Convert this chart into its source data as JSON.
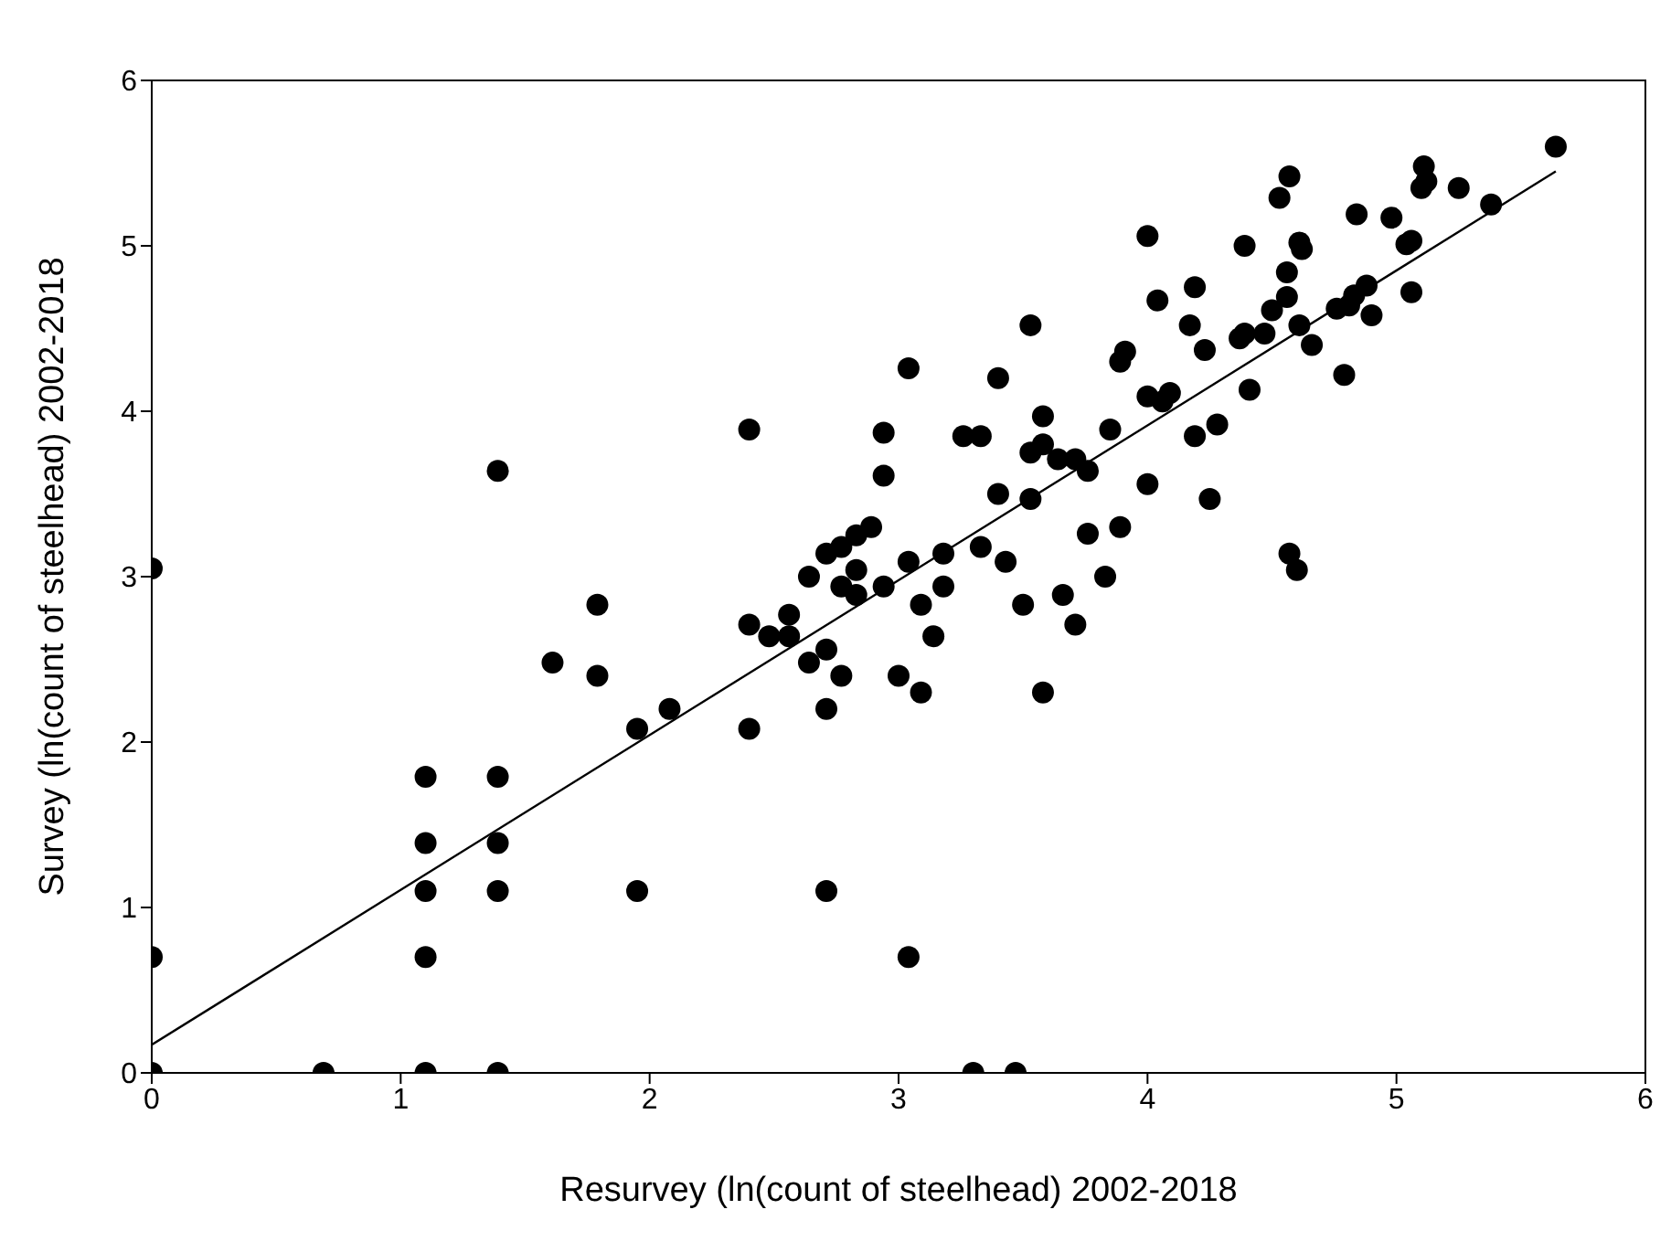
{
  "chart_data": {
    "type": "scatter",
    "xlabel": "Resurvey (ln(count of steelhead) 2002-2018",
    "ylabel": "Survey (ln(count of steelhead) 2002-2018",
    "xlim": [
      0,
      6
    ],
    "ylim": [
      0,
      6
    ],
    "xticks": [
      0,
      1,
      2,
      3,
      4,
      5,
      6
    ],
    "yticks": [
      0,
      1,
      2,
      3,
      4,
      5,
      6
    ],
    "grid": false,
    "legend": false,
    "marker": "circle",
    "series": [
      {
        "type": "scatter",
        "color": "#000000",
        "x": [
          0,
          0,
          0,
          0.69,
          1.1,
          1.1,
          1.1,
          1.1,
          1.1,
          1.39,
          1.39,
          1.39,
          1.39,
          1.39,
          1.61,
          1.79,
          1.79,
          1.95,
          1.95,
          2.08,
          2.4,
          2.4,
          2.4,
          2.48,
          2.56,
          2.56,
          2.64,
          2.64,
          2.71,
          2.71,
          2.71,
          2.71,
          2.77,
          2.77,
          2.77,
          2.83,
          2.83,
          2.83,
          2.89,
          2.94,
          2.94,
          2.94,
          3.0,
          3.04,
          3.04,
          3.04,
          3.09,
          3.09,
          3.14,
          3.18,
          3.18,
          3.26,
          3.3,
          3.33,
          3.33,
          3.4,
          3.4,
          3.43,
          3.47,
          3.5,
          3.53,
          3.53,
          3.53,
          3.58,
          3.58,
          3.58,
          3.64,
          3.66,
          3.71,
          3.71,
          3.76,
          3.76,
          3.83,
          3.85,
          3.89,
          3.89,
          3.91,
          4.0,
          4.0,
          4.0,
          4.04,
          4.06,
          4.09,
          4.17,
          4.19,
          4.19,
          4.23,
          4.25,
          4.28,
          4.37,
          4.39,
          4.39,
          4.41,
          4.47,
          4.5,
          4.53,
          4.56,
          4.56,
          4.57,
          4.57,
          4.6,
          4.61,
          4.61,
          4.62,
          4.66,
          4.76,
          4.79,
          4.81,
          4.83,
          4.84,
          4.88,
          4.9,
          4.98,
          5.04,
          5.06,
          5.06,
          5.1,
          5.11,
          5.12,
          5.25,
          5.38,
          5.64
        ],
        "values": [
          0,
          0.7,
          3.05,
          0,
          0,
          0.7,
          1.1,
          1.39,
          1.79,
          0,
          1.1,
          1.39,
          1.79,
          3.64,
          2.48,
          2.83,
          2.4,
          1.1,
          2.08,
          2.2,
          3.89,
          2.71,
          2.08,
          2.64,
          2.64,
          2.77,
          2.48,
          3.0,
          3.14,
          2.56,
          2.2,
          1.1,
          2.94,
          3.18,
          2.4,
          3.04,
          2.89,
          3.25,
          3.3,
          3.61,
          3.87,
          2.94,
          2.4,
          3.09,
          4.26,
          0.7,
          2.3,
          2.83,
          2.64,
          3.14,
          2.94,
          3.85,
          0,
          3.85,
          3.18,
          4.2,
          3.5,
          3.09,
          0,
          2.83,
          4.52,
          3.75,
          3.47,
          3.97,
          3.8,
          2.3,
          3.71,
          2.89,
          3.71,
          2.71,
          3.64,
          3.26,
          3.0,
          3.89,
          4.3,
          3.3,
          4.36,
          5.06,
          4.09,
          3.56,
          4.67,
          4.06,
          4.11,
          4.52,
          4.75,
          3.85,
          4.37,
          3.47,
          3.92,
          4.44,
          4.47,
          5.0,
          4.13,
          4.47,
          4.61,
          5.29,
          4.84,
          4.69,
          5.42,
          3.14,
          3.04,
          5.02,
          4.52,
          4.98,
          4.4,
          4.62,
          4.22,
          4.64,
          4.7,
          5.19,
          4.76,
          4.58,
          5.17,
          5.01,
          5.03,
          4.72,
          5.35,
          5.48,
          5.39,
          5.35,
          5.25,
          5.6
        ]
      },
      {
        "type": "line",
        "color": "#000000",
        "marker": "none",
        "x": [
          0,
          5.64
        ],
        "values": [
          0.17,
          5.45
        ]
      }
    ]
  }
}
